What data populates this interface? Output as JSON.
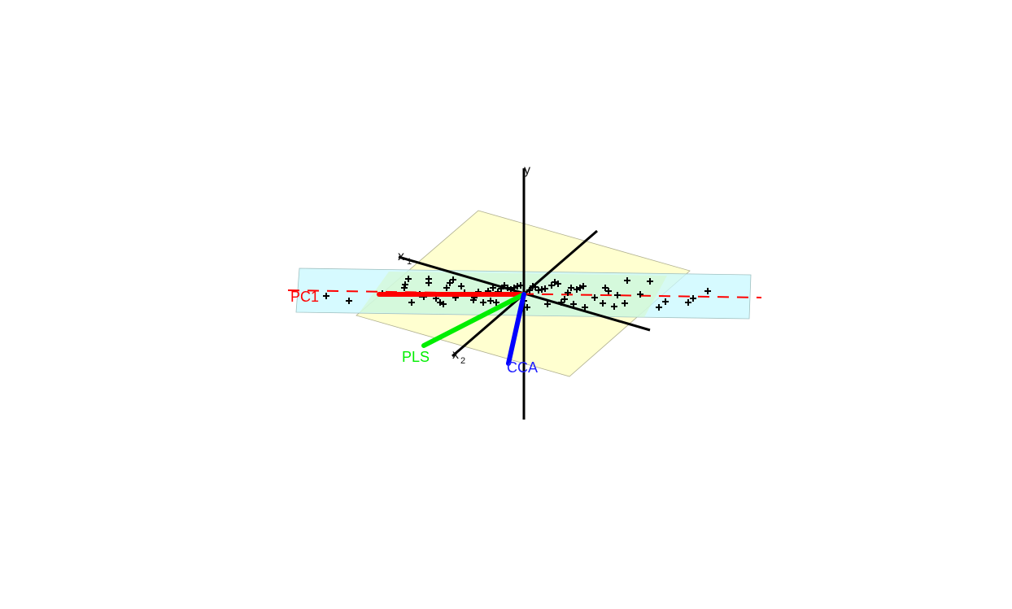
{
  "diagram": {
    "axes": {
      "y": {
        "label": "y"
      },
      "x1": {
        "label": "x",
        "subscript": "1"
      },
      "x2": {
        "label": "x",
        "subscript": "2"
      }
    },
    "vectors": [
      {
        "id": "pc1",
        "label": "PC1",
        "color": "#ff0000"
      },
      {
        "id": "pls",
        "label": "PLS",
        "color": "#00ee00"
      },
      {
        "id": "cca",
        "label": "CCA",
        "color": "#0000ff"
      }
    ],
    "planes": [
      {
        "id": "predictor-plane",
        "color": "#ffffcc"
      },
      {
        "id": "pc-plane",
        "color": "#ccffff"
      }
    ],
    "points_marker": "+",
    "colors": {
      "axis": "#000000",
      "points": "#000000"
    }
  }
}
